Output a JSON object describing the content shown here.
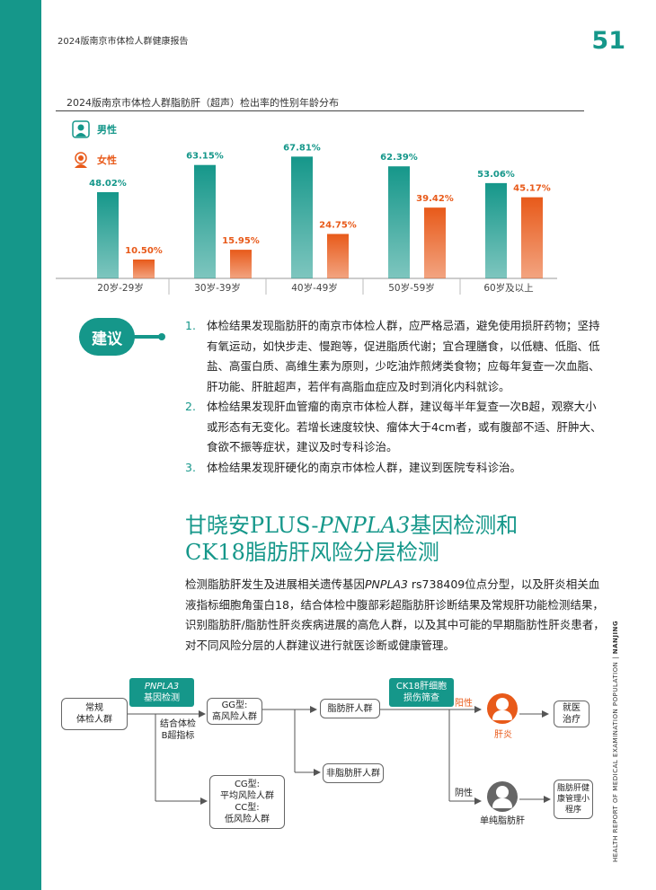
{
  "header": {
    "report_title": "2024版南京市体检人群健康报告",
    "page_number": "51"
  },
  "chart_section": {
    "title": "2024版南京市体检人群脂肪肝（超声）检出率的性别年龄分布"
  },
  "chart_data": {
    "type": "bar",
    "categories": [
      "20岁-29岁",
      "30岁-39岁",
      "40岁-49岁",
      "50岁-59岁",
      "60岁及以上"
    ],
    "series": [
      {
        "name": "男性",
        "values": [
          48.02,
          63.15,
          67.81,
          62.39,
          53.06
        ],
        "labels": [
          "48.02%",
          "63.15%",
          "67.81%",
          "62.39%",
          "53.06%"
        ],
        "color": "#15978a"
      },
      {
        "name": "女性",
        "values": [
          10.5,
          15.95,
          24.75,
          39.42,
          45.17
        ],
        "labels": [
          "10.50%",
          "15.95%",
          "24.75%",
          "39.42%",
          "45.17%"
        ],
        "color": "#e85a1a"
      }
    ],
    "ylim": [
      0,
      75
    ]
  },
  "legend": {
    "male": "男性",
    "female": "女性",
    "male_icon": "male-user-icon",
    "female_icon": "female-user-icon"
  },
  "suggestion": {
    "badge": "建议",
    "items": [
      {
        "num": "1.",
        "text": "体检结果发现脂肪肝的南京市体检人群，应严格忌酒，避免使用损肝药物；坚持有氧运动，如快步走、慢跑等，促进脂质代谢；宜合理膳食，以低糖、低脂、低盐、高蛋白质、高维生素为原则，少吃油炸煎烤类食物；应每年复查一次血脂、肝功能、肝脏超声，若伴有高脂血症应及时到消化内科就诊。"
      },
      {
        "num": "2.",
        "text": "体检结果发现肝血管瘤的南京市体检人群，建议每半年复查一次B超，观察大小或形态有无变化。若增长速度较快、瘤体大于4cm者，或有腹部不适、肝肿大、食欲不振等症状，建议及时专科诊治。"
      },
      {
        "num": "3.",
        "text": "体检结果发现肝硬化的南京市体检人群，建议到医院专科诊治。"
      }
    ]
  },
  "section": {
    "title_line1_a": "甘晓安PLUS-",
    "title_line1_italic": "PNPLA3",
    "title_line1_b": "基因检测和",
    "title_line2": "CK18脂肪肝风险分层检测",
    "body_a": "检测脂肪肝发生及进展相关遗传基因",
    "body_italic": "PNPLA3",
    "body_b": " rs738409位点分型，以及肝炎相关血液指标细胞角蛋白18，结合体检中腹部彩超脂肪肝诊断结果及常规肝功能检测结果，识别脂肪肝/脂肪性肝炎疾病进展的高危人群，以及其中可能的早期脂肪性肝炎患者，对不同风险分层的人群建议进行就医诊断或健康管理。"
  },
  "side_text": {
    "main": "HEALTH REPORT OF MEDICAL EXAMINATION POPULATION",
    "city": "NANJING"
  },
  "flow": {
    "start": "常规\n体检人群",
    "tag1_italic": "PNPLA3",
    "tag1_b": "基因检测",
    "gg": "GG型:\n高风险人群",
    "combine": "结合体检\nB超指标",
    "cg": "CG型:\n平均风险人群\nCC型:\n低风险人群",
    "fatty": "脂肪肝人群",
    "non_fatty": "非脂肪肝人群",
    "tag2": "CK18肝细胞\n损伤筛查",
    "positive": "阳性",
    "negative": "阴性",
    "hepatitis": "肝炎",
    "simple": "单纯脂肪肝",
    "clinic": "就医\n治疗",
    "program": "脂肪肝健\n康管理小\n程序"
  }
}
